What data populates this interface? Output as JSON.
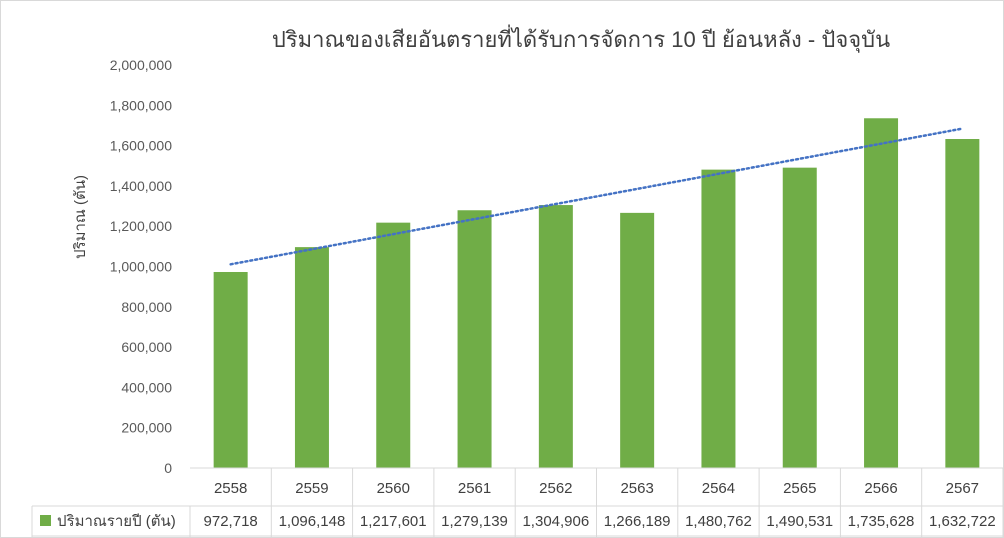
{
  "chart_data": {
    "type": "bar",
    "title": "ปริมาณของเสียอันตรายที่ได้รับการจัดการ 10 ปี ย้อนหลัง - ปัจจุบัน",
    "xlabel": "",
    "ylabel": "ปริมาณ (ตัน)",
    "ylim": [
      0,
      2000000
    ],
    "yticks": [
      "0",
      "200,000",
      "400,000",
      "600,000",
      "800,000",
      "1,000,000",
      "1,200,000",
      "1,400,000",
      "1,600,000",
      "1,800,000",
      "2,000,000"
    ],
    "categories": [
      "2558",
      "2559",
      "2560",
      "2561",
      "2562",
      "2563",
      "2564",
      "2565",
      "2566",
      "2567"
    ],
    "series": [
      {
        "name": "ปริมาณรายปี (ตัน)",
        "color": "#70ad47",
        "values": [
          972718,
          1096148,
          1217601,
          1279139,
          1304906,
          1266189,
          1480762,
          1490531,
          1735628,
          1632722
        ],
        "value_labels": [
          "972,718",
          "1,096,148",
          "1,217,601",
          "1,279,139",
          "1,304,906",
          "1,266,189",
          "1,480,762",
          "1,490,531",
          "1,735,628",
          "1,632,722"
        ]
      }
    ],
    "trendline": {
      "type": "linear",
      "style": "dotted",
      "color": "#4472c4"
    },
    "grid": false,
    "legend": "data-table"
  }
}
